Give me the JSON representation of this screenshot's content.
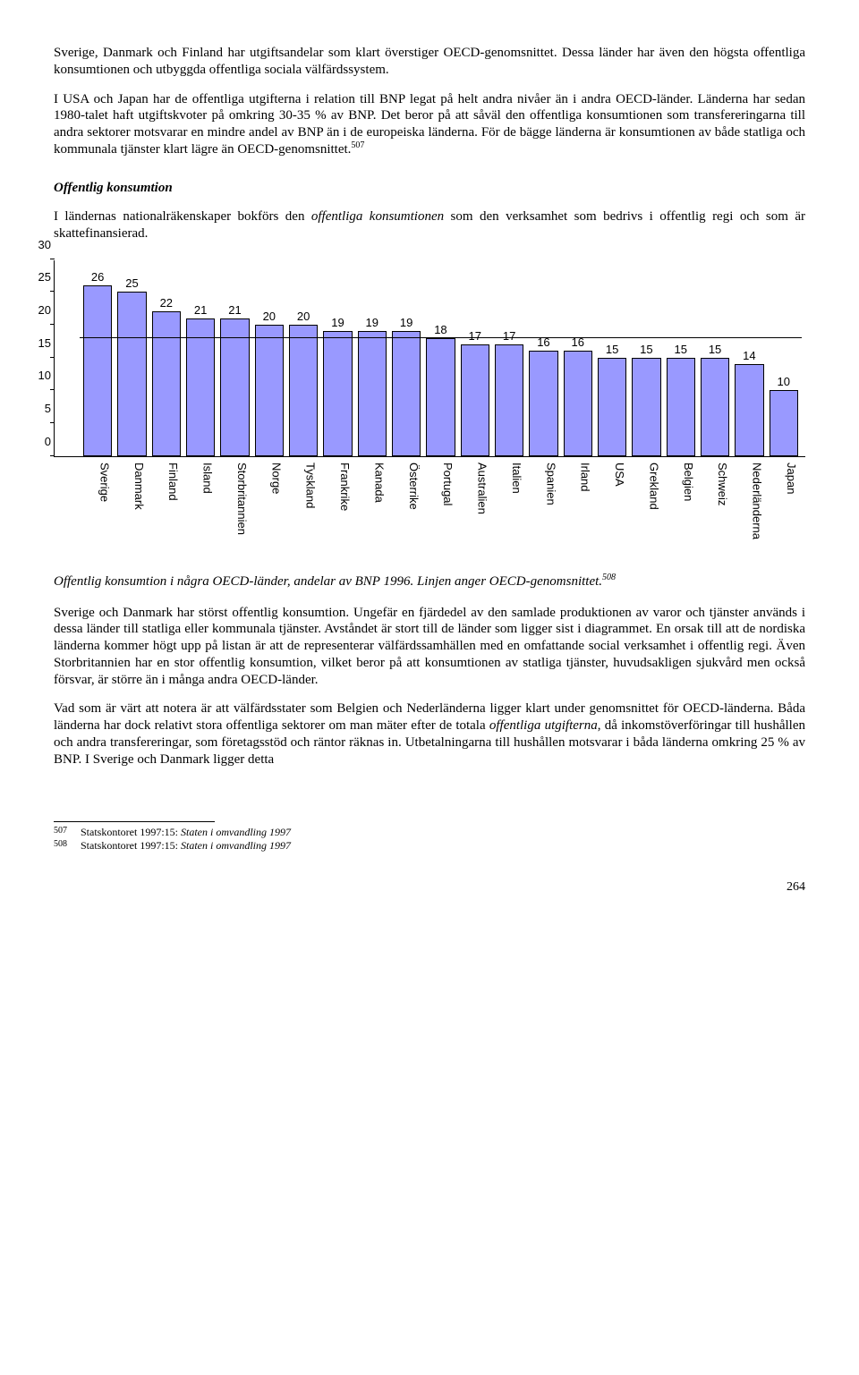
{
  "paragraphs": {
    "p1": "Sverige, Danmark och Finland har utgiftsandelar som klart överstiger OECD-genomsnittet. Dessa länder har även den högsta offentliga konsumtionen och utbyggda offentliga sociala välfärdssystem.",
    "p2a": "I USA och Japan har de offentliga utgifterna i relation till BNP legat på helt andra nivåer än i andra OECD-länder. Länderna har sedan 1980-talet haft utgiftskvoter på omkring 30-35 % av BNP. Det beror på att såväl den offentliga konsumtionen som transfereringarna till andra sektorer motsvarar en mindre andel av BNP än i de europeiska länderna. För de bägge länderna är konsumtionen av både statliga och kommunala tjänster klart lägre än OECD-genomsnittet.",
    "p2_sup": "507",
    "heading": "Offentlig konsumtion",
    "p3a": "I ländernas nationalräkenskaper bokförs den ",
    "p3_em": "offentliga konsumtionen",
    "p3b": " som den verksamhet som bedrivs i offentlig regi och som är skattefinansierad.",
    "caption_a": "Offentlig konsumtion i några OECD-länder, andelar av BNP 1996. Linjen anger OECD-genomsnittet.",
    "caption_sup": "508",
    "p4": "Sverige och Danmark har störst offentlig konsumtion. Ungefär en fjärdedel av den samlade produktionen av varor och tjänster används i dessa länder till statliga eller kommunala tjänster. Avståndet är stort till de länder som ligger sist i diagrammet. En orsak till att de nordiska länderna kommer högt upp på listan är att de representerar välfärdssamhällen med en omfattande social verksamhet i offentlig regi. Även Storbritannien har en stor offentlig konsumtion, vilket beror på att konsumtionen av statliga tjänster, huvudsakligen sjukvård men också försvar, är större än i många andra OECD-länder.",
    "p5a": "Vad som är värt att notera är att välfärdsstater som Belgien och Nederländerna ligger klart under genomsnittet för OECD-länderna. Båda länderna har dock relativt stora offentliga sektorer om man mäter efter de totala ",
    "p5_em": "offentliga utgifterna",
    "p5b": ", då inkomstöverföringar till hushållen och andra transfereringar, som företagsstöd och räntor räknas in. Utbetalningarna till hushållen motsvarar i båda länderna omkring 25 % av BNP. I Sverige och Danmark ligger detta"
  },
  "chart": {
    "y_max": 30,
    "y_ticks": [
      0,
      5,
      10,
      15,
      20,
      25,
      30
    ],
    "avg_line_value": 18,
    "bar_color": "#9999ff",
    "categories": [
      "Sverige",
      "Danmark",
      "Finland",
      "Island",
      "Storbritannien",
      "Norge",
      "Tyskland",
      "Frankrike",
      "Kanada",
      "Österrike",
      "Portugal",
      "Australien",
      "Italien",
      "Spanien",
      "Irland",
      "USA",
      "Grekland",
      "Belgien",
      "Schweiz",
      "Nederländerna",
      "Japan"
    ],
    "values": [
      26,
      25,
      22,
      21,
      21,
      20,
      20,
      19,
      19,
      19,
      18,
      17,
      17,
      16,
      16,
      15,
      15,
      15,
      15,
      14,
      10
    ]
  },
  "footnotes": {
    "f507_num": "507",
    "f507_text": "Statskontoret 1997:15: ",
    "f507_em": "Staten i omvandling 1997",
    "f508_num": "508",
    "f508_text": "Statskontoret 1997:15: ",
    "f508_em": "Staten i omvandling 1997"
  },
  "page_number": "264"
}
